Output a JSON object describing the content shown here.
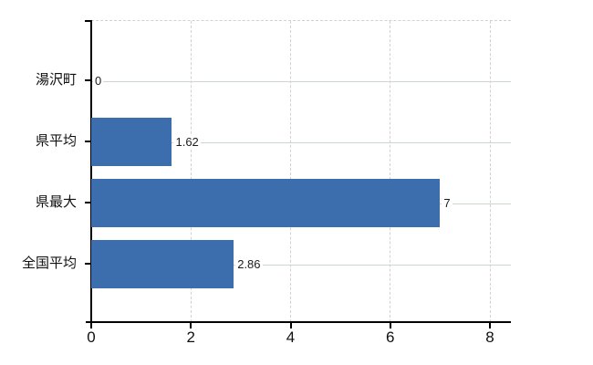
{
  "chart_data": {
    "type": "bar",
    "orientation": "horizontal",
    "title": "",
    "xlabel": "",
    "ylabel": "",
    "categories": [
      "湯沢町",
      "県平均",
      "県最大",
      "全国平均"
    ],
    "values": [
      0,
      1.62,
      7,
      2.86
    ],
    "value_labels": [
      "0",
      "1.62",
      "7",
      "2.86"
    ],
    "xlim": [
      0,
      8
    ],
    "x_ticks": [
      0,
      2,
      4,
      6,
      8
    ],
    "x_tick_labels": [
      "0",
      "2",
      "4",
      "6",
      "8"
    ],
    "grid": true,
    "legend": false,
    "colors": {
      "bar": "#3c6dac",
      "horizontal_gridline": "#ccd8cc",
      "vertical_gridline": "#d3d0d3",
      "axis": "#000000",
      "background": "#ffffff",
      "text": "#111111"
    }
  }
}
